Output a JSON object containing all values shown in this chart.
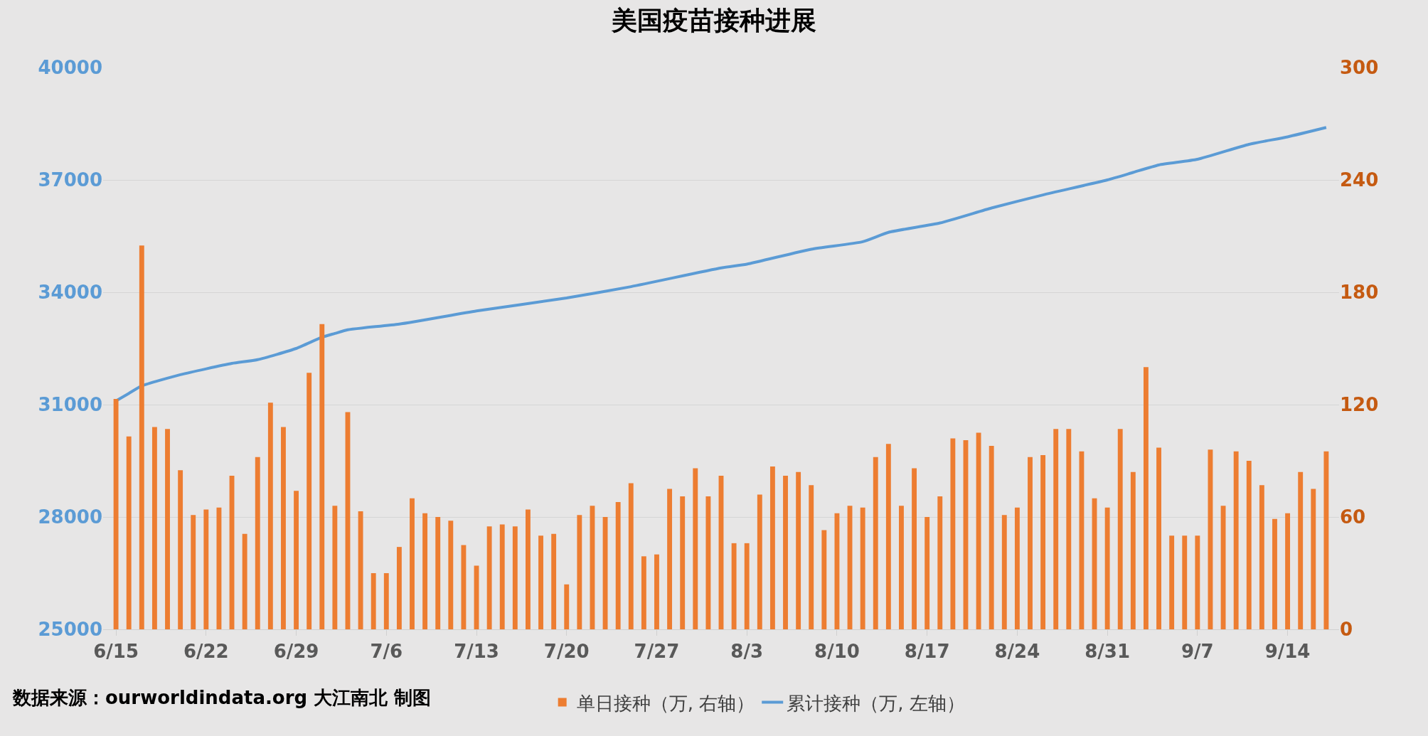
{
  "chart_data": {
    "type": "bar",
    "title": "美国疫苗接种进展",
    "x": [
      "--06-15",
      "--06-16",
      "--06-17",
      "--06-18",
      "--06-19",
      "--06-20",
      "--06-21",
      "--06-22",
      "--06-23",
      "--06-24",
      "--06-25",
      "--06-26",
      "--06-27",
      "--06-28",
      "--06-29",
      "--06-30",
      "--07-01",
      "--07-02",
      "--07-03",
      "--07-04",
      "--07-05",
      "--07-06",
      "--07-07",
      "--07-08",
      "--07-09",
      "--07-10",
      "--07-11",
      "--07-12",
      "--07-13",
      "--07-14",
      "--07-15",
      "--07-16",
      "--07-17",
      "--07-18",
      "--07-19",
      "--07-20",
      "--07-21",
      "--07-22",
      "--07-23",
      "--07-24",
      "--07-25",
      "--07-26",
      "--07-27",
      "--07-28",
      "--07-29",
      "--07-30",
      "--07-31",
      "--08-01",
      "--08-02",
      "--08-03",
      "--08-04",
      "--08-05",
      "--08-06",
      "--08-07",
      "--08-08",
      "--08-09",
      "--08-10",
      "--08-11",
      "--08-12",
      "--08-13",
      "--08-14",
      "--08-15",
      "--08-16",
      "--08-17",
      "--08-18",
      "--08-19",
      "--08-20",
      "--08-21",
      "--08-22",
      "--08-23",
      "--08-24",
      "--08-25",
      "--08-26",
      "--08-27",
      "--08-28",
      "--08-29",
      "--08-30",
      "--08-31",
      "--09-01",
      "--09-02",
      "--09-03",
      "--09-04",
      "--09-05",
      "--09-06",
      "--09-07",
      "--09-08",
      "--09-09",
      "--09-10",
      "--09-11",
      "--09-12",
      "--09-13",
      "--09-14",
      "--09-15",
      "--09-16",
      "--09-17"
    ],
    "series": [
      {
        "name": "单日接种（万, 右轴）",
        "axis": "y2",
        "color": "#ed7d31",
        "values": [
          123,
          103,
          205,
          108,
          107,
          85,
          61,
          64,
          65,
          82,
          51,
          92,
          121,
          108,
          74,
          137,
          163,
          66,
          116,
          63,
          30,
          30,
          44,
          70,
          62,
          60,
          58,
          45,
          34,
          55,
          56,
          55,
          64,
          50,
          51,
          24,
          61,
          66,
          60,
          68,
          78,
          39,
          40,
          75,
          71,
          86,
          71,
          82,
          46,
          46,
          72,
          87,
          82,
          84,
          77,
          53,
          62,
          66,
          65,
          92,
          99,
          66,
          86,
          60,
          71,
          102,
          101,
          105,
          98,
          61,
          65,
          92,
          93,
          107,
          107,
          95,
          70,
          65,
          107,
          84,
          140,
          97,
          50,
          50,
          50,
          96,
          66,
          95,
          90,
          77,
          59,
          62,
          84,
          75,
          95
        ]
      },
      {
        "name": "累计接种（万, 左轴）",
        "type": "line",
        "color": "#5b9bd5",
        "x": [
          "--06-15",
          "--06-16",
          "--06-17",
          "--06-20",
          "--06-24",
          "--06-26",
          "--06-29",
          "--07-01",
          "--07-02",
          "--07-03",
          "--07-07",
          "--07-13",
          "--07-20",
          "--07-25",
          "--08-01",
          "--08-03",
          "--08-08",
          "--08-12",
          "--08-14",
          "--08-18",
          "--08-22",
          "--08-26",
          "--08-31",
          "--09-02",
          "--09-04",
          "--09-07",
          "--09-11",
          "--09-14",
          "--09-17"
        ],
        "values": [
          31100,
          31300,
          31500,
          31800,
          32100,
          32200,
          32500,
          32800,
          32900,
          33000,
          33150,
          33500,
          33850,
          34150,
          34650,
          34750,
          35150,
          35350,
          35600,
          35850,
          36250,
          36600,
          37000,
          37200,
          37400,
          37550,
          37950,
          38150,
          38400
        ]
      }
    ],
    "xlim": [
      "--06-14",
      "--09-18"
    ],
    "xticks": [
      {
        "value": "--06-15",
        "label": "6/15"
      },
      {
        "value": "--06-22",
        "label": "6/22"
      },
      {
        "value": "--06-29",
        "label": "6/29"
      },
      {
        "value": "--07-06",
        "label": "7/6"
      },
      {
        "value": "--07-13",
        "label": "7/13"
      },
      {
        "value": "--07-20",
        "label": "7/20"
      },
      {
        "value": "--07-27",
        "label": "7/27"
      },
      {
        "value": "--08-03",
        "label": "8/3"
      },
      {
        "value": "--08-10",
        "label": "8/10"
      },
      {
        "value": "--08-17",
        "label": "8/17"
      },
      {
        "value": "--08-24",
        "label": "8/24"
      },
      {
        "value": "--08-31",
        "label": "8/31"
      },
      {
        "value": "--09-07",
        "label": "9/7"
      },
      {
        "value": "--09-14",
        "label": "9/14"
      }
    ],
    "ylim": [
      25000,
      40000
    ],
    "yticks": [
      25000,
      28000,
      31000,
      34000,
      37000,
      40000
    ],
    "y2lim": [
      0,
      300
    ],
    "y2ticks": [
      0,
      60,
      120,
      180,
      240,
      300
    ],
    "grid": "y",
    "legend": "bottom",
    "line_style": "solid",
    "marker": "none",
    "annotations": [
      "数据来源：ourworldindata.org 大江南北 制图"
    ]
  }
}
